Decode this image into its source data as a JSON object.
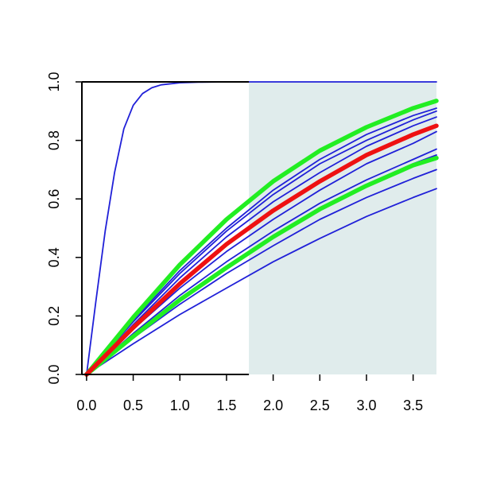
{
  "chart_data": {
    "type": "line",
    "title": "",
    "xlabel": "",
    "ylabel": "",
    "xlim": [
      -0.05,
      3.75
    ],
    "ylim": [
      0,
      1
    ],
    "grid": false,
    "legend": "none",
    "x_ticks": [
      "0.0",
      "0.5",
      "1.0",
      "1.5",
      "2.0",
      "2.5",
      "3.0",
      "3.5"
    ],
    "y_ticks": [
      "0.0",
      "0.2",
      "0.4",
      "0.6",
      "0.8",
      "1.0"
    ],
    "shaded_region": {
      "x_from": 1.74,
      "x_to": 3.75,
      "color": "#e0ecec"
    },
    "colors": {
      "blue": "#2020d8",
      "green": "#22ee22",
      "red": "#ee1111",
      "axis": "#000000"
    },
    "series": [
      {
        "color": "blue",
        "weight": "thin",
        "x": [
          0,
          0.1,
          0.2,
          0.3,
          0.4,
          0.5,
          0.6,
          0.7,
          0.8,
          1.0,
          1.2,
          1.5,
          2.0,
          3.75
        ],
        "y": [
          0.0,
          0.25,
          0.49,
          0.69,
          0.84,
          0.92,
          0.96,
          0.98,
          0.99,
          0.997,
          0.999,
          1.0,
          1.0,
          1.0
        ]
      },
      {
        "color": "blue",
        "weight": "thin",
        "x": [
          0,
          0.5,
          1.0,
          1.5,
          2.0,
          2.5,
          3.0,
          3.5,
          3.75
        ],
        "y": [
          0.0,
          0.155,
          0.295,
          0.42,
          0.53,
          0.63,
          0.72,
          0.79,
          0.83
        ]
      },
      {
        "color": "blue",
        "weight": "thin",
        "x": [
          0,
          0.5,
          1.0,
          1.5,
          2.0,
          2.5,
          3.0,
          3.5,
          3.75
        ],
        "y": [
          0.0,
          0.165,
          0.315,
          0.45,
          0.565,
          0.665,
          0.75,
          0.82,
          0.85
        ]
      },
      {
        "color": "blue",
        "weight": "thin",
        "x": [
          0,
          0.5,
          1.0,
          1.5,
          2.0,
          2.5,
          3.0,
          3.5,
          3.75
        ],
        "y": [
          0.0,
          0.17,
          0.33,
          0.47,
          0.59,
          0.69,
          0.78,
          0.85,
          0.88
        ]
      },
      {
        "color": "blue",
        "weight": "thin",
        "x": [
          0,
          0.5,
          1.0,
          1.5,
          2.0,
          2.5,
          3.0,
          3.5,
          3.75
        ],
        "y": [
          0.0,
          0.18,
          0.345,
          0.49,
          0.615,
          0.72,
          0.8,
          0.87,
          0.9
        ]
      },
      {
        "color": "blue",
        "weight": "thin",
        "x": [
          0,
          0.5,
          1.0,
          1.5,
          2.0,
          2.5,
          3.0,
          3.5,
          3.75
        ],
        "y": [
          0.0,
          0.185,
          0.355,
          0.5,
          0.63,
          0.735,
          0.82,
          0.885,
          0.91
        ]
      },
      {
        "color": "blue",
        "weight": "thin",
        "x": [
          0,
          0.5,
          1.0,
          1.5,
          2.0,
          2.5,
          3.0,
          3.5,
          3.75
        ],
        "y": [
          0.0,
          0.14,
          0.27,
          0.385,
          0.49,
          0.585,
          0.665,
          0.735,
          0.77
        ]
      },
      {
        "color": "blue",
        "weight": "thin",
        "x": [
          0,
          0.5,
          1.0,
          1.5,
          2.0,
          2.5,
          3.0,
          3.5,
          3.75
        ],
        "y": [
          0.0,
          0.135,
          0.26,
          0.37,
          0.475,
          0.57,
          0.65,
          0.72,
          0.75
        ]
      },
      {
        "color": "blue",
        "weight": "thin",
        "x": [
          0,
          0.5,
          1.0,
          1.5,
          2.0,
          2.5,
          3.0,
          3.5,
          3.75
        ],
        "y": [
          0.0,
          0.125,
          0.24,
          0.345,
          0.44,
          0.53,
          0.605,
          0.67,
          0.7
        ]
      },
      {
        "color": "blue",
        "weight": "thin",
        "x": [
          0,
          0.5,
          1.0,
          1.5,
          2.0,
          2.5,
          3.0,
          3.5,
          3.75
        ],
        "y": [
          0.0,
          0.105,
          0.205,
          0.295,
          0.385,
          0.465,
          0.54,
          0.605,
          0.635
        ]
      },
      {
        "color": "green",
        "weight": "thick",
        "x": [
          0,
          0.5,
          1.0,
          1.5,
          2.0,
          2.5,
          3.0,
          3.5,
          3.75
        ],
        "y": [
          0.0,
          0.195,
          0.375,
          0.53,
          0.66,
          0.765,
          0.845,
          0.91,
          0.935
        ]
      },
      {
        "color": "green",
        "weight": "thick",
        "x": [
          0,
          0.5,
          1.0,
          1.5,
          2.0,
          2.5,
          3.0,
          3.5,
          3.75
        ],
        "y": [
          0.0,
          0.13,
          0.255,
          0.365,
          0.47,
          0.565,
          0.645,
          0.715,
          0.74
        ]
      },
      {
        "color": "red",
        "weight": "thick",
        "x": [
          0,
          0.5,
          1.0,
          1.5,
          2.0,
          2.5,
          3.0,
          3.5,
          3.75
        ],
        "y": [
          0.0,
          0.16,
          0.31,
          0.445,
          0.56,
          0.66,
          0.75,
          0.82,
          0.85
        ]
      }
    ]
  }
}
